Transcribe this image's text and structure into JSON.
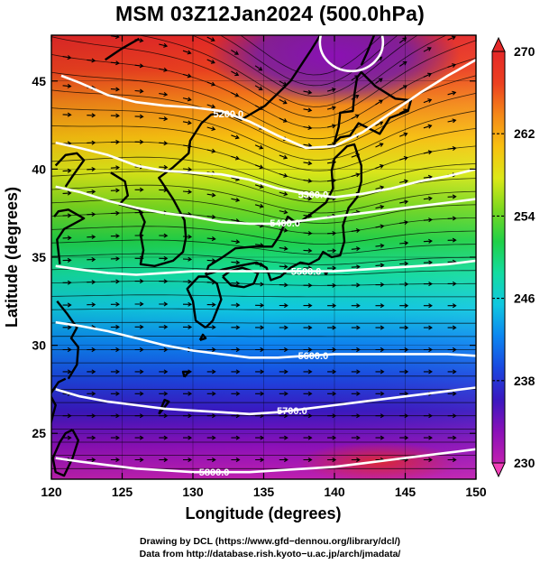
{
  "title": "MSM 03Z12Jan2024 (500.0hPa)",
  "chart_data": {
    "type": "heatmap",
    "title": "MSM 03Z12Jan2024 (500.0hPa)",
    "xlabel": "Longitude (degrees)",
    "ylabel": "Latitude  (degrees)",
    "xlim": [
      120,
      150
    ],
    "ylim": [
      22.4,
      47.6
    ],
    "x_ticks": [
      "120",
      "125",
      "130",
      "135",
      "140",
      "145",
      "150"
    ],
    "y_ticks": [
      "25",
      "30",
      "35",
      "40",
      "45"
    ],
    "x_tick_values": [
      120,
      125,
      130,
      135,
      140,
      145,
      150
    ],
    "y_tick_values": [
      25,
      30,
      35,
      40,
      45
    ],
    "grid": true,
    "colorbar": {
      "min": 230,
      "max": 270,
      "ticks": [
        "230",
        "238",
        "246",
        "254",
        "262",
        "270"
      ],
      "tick_values": [
        230,
        238,
        246,
        254,
        262,
        270
      ],
      "placement": "right",
      "colors": [
        "#c020b0",
        "#8a10b8",
        "#3a18c0",
        "#1a48e0",
        "#0c86f0",
        "#10c8e0",
        "#14dca0",
        "#20d048",
        "#7ad820",
        "#dce818",
        "#f8c010",
        "#f48818",
        "#ec4020",
        "#e42828"
      ]
    },
    "contour_labels": [
      "5200.0",
      "5300.0",
      "5400.0",
      "5500.0",
      "5600.0",
      "5700.0",
      "5800.0"
    ],
    "contour_series": [
      {
        "name": "5200.0",
        "x": [
          120.7,
          122,
          124,
          126,
          128,
          130,
          132,
          134,
          136,
          138,
          140,
          142,
          144,
          146,
          148,
          150
        ],
        "y": [
          45.3,
          44.9,
          44.2,
          43.8,
          43.6,
          43.5,
          43.3,
          42.7,
          41.9,
          41.2,
          41.3,
          42.1,
          43.2,
          44.3,
          45.3,
          46.2
        ]
      },
      {
        "name": "5300.0",
        "x": [
          120.3,
          122,
          124,
          126,
          128,
          130,
          132,
          134,
          136,
          138,
          140,
          142,
          144,
          146,
          148,
          150
        ],
        "y": [
          41.5,
          41.2,
          40.8,
          40.2,
          39.9,
          39.8,
          39.7,
          39.4,
          38.9,
          38.6,
          38.4,
          38.6,
          38.9,
          39.3,
          39.6,
          40.0
        ]
      },
      {
        "name": "5400.0",
        "x": [
          120.3,
          122,
          124,
          126,
          128,
          130,
          132,
          134,
          136,
          138,
          140,
          142,
          144,
          146,
          148,
          150
        ],
        "y": [
          39.0,
          38.7,
          38.2,
          37.8,
          37.5,
          37.3,
          37.0,
          36.9,
          36.9,
          37.1,
          37.3,
          37.5,
          37.7,
          37.9,
          38.1,
          38.3
        ]
      },
      {
        "name": "5500.0",
        "x": [
          120.3,
          122,
          124,
          126,
          128,
          130,
          132,
          134,
          136,
          138,
          140,
          142,
          144,
          146,
          148,
          150
        ],
        "y": [
          34.5,
          34.3,
          34.1,
          34.0,
          34.1,
          34.2,
          34.2,
          34.2,
          34.2,
          34.2,
          34.2,
          34.3,
          34.4,
          34.5,
          34.6,
          34.8
        ]
      },
      {
        "name": "5600.0",
        "x": [
          120.3,
          122,
          124,
          126,
          128,
          130,
          132,
          134,
          136,
          138,
          140,
          142,
          144,
          146,
          148,
          150
        ],
        "y": [
          31.3,
          31.1,
          30.8,
          30.4,
          30.0,
          29.7,
          29.5,
          29.3,
          29.3,
          29.4,
          29.5,
          29.5,
          29.5,
          29.5,
          29.5,
          29.4
        ]
      },
      {
        "name": "5700.0",
        "x": [
          120.3,
          122,
          124,
          126,
          128,
          130,
          132,
          134,
          136,
          138,
          140,
          142,
          144,
          146,
          148,
          150
        ],
        "y": [
          27.5,
          27.1,
          26.8,
          26.6,
          26.4,
          26.3,
          26.2,
          26.1,
          26.2,
          26.4,
          26.6,
          26.8,
          27.0,
          27.2,
          27.4,
          27.6
        ]
      },
      {
        "name": "5800.0",
        "x": [
          120.3,
          122,
          124,
          126,
          128,
          130,
          132,
          134,
          136,
          138,
          140,
          142,
          144,
          146,
          148,
          150
        ],
        "y": [
          23.6,
          23.4,
          23.2,
          23.0,
          22.9,
          22.8,
          22.8,
          22.8,
          22.9,
          23.0,
          23.1,
          23.3,
          23.5,
          23.7,
          23.9,
          24.1
        ]
      }
    ]
  },
  "credits": {
    "line1": "Drawing by DCL (https://www.gfd−dennou.org/library/dcl/)",
    "line2": "Data from http://database.rish.kyoto−u.ac.jp/arch/jmadata/"
  }
}
